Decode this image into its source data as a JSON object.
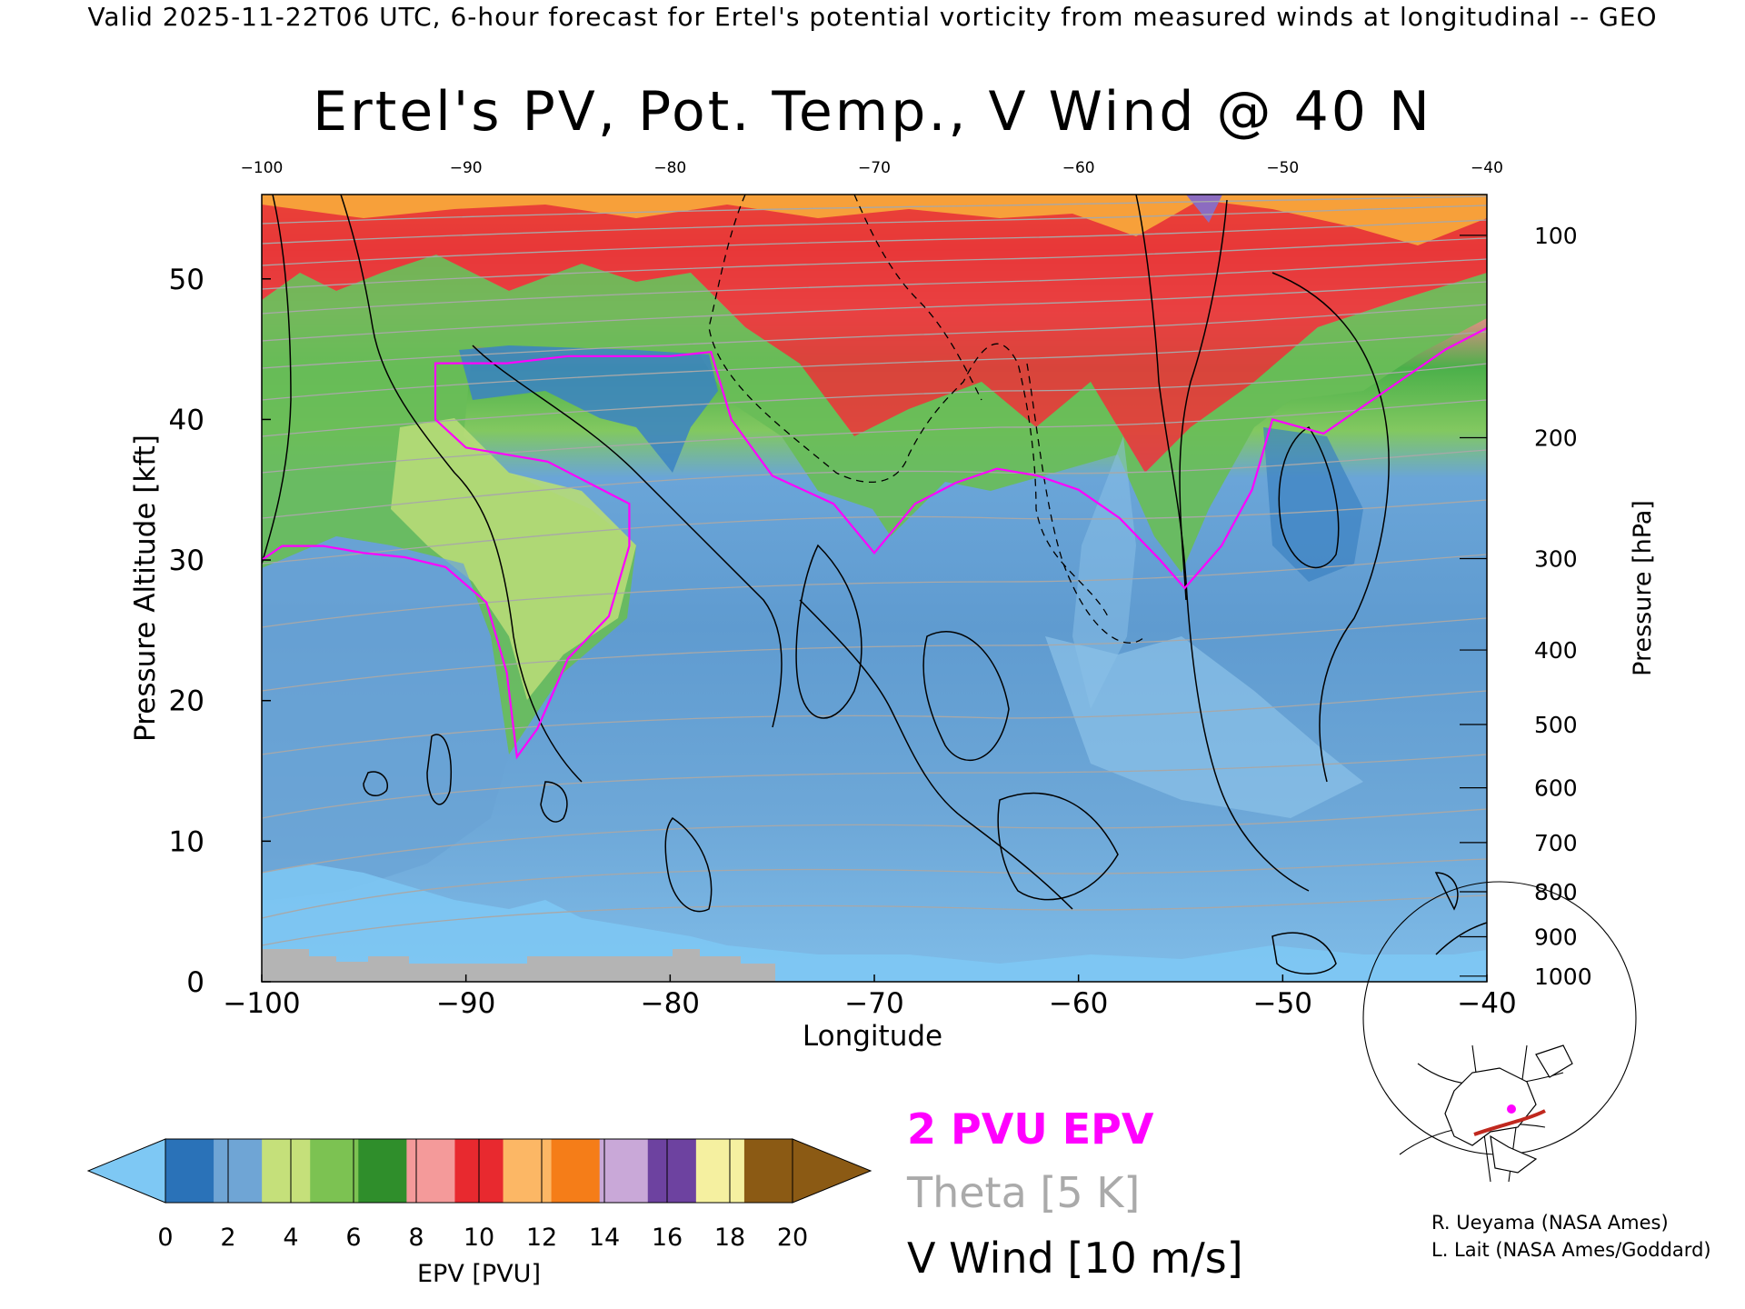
{
  "header": "Valid 2025-11-22T06 UTC, 6-hour forecast for Ertel's potential vorticity from measured winds at longitudinal -- GEO",
  "chart_data": {
    "type": "heatmap",
    "title": "Ertel's PV, Pot. Temp., V Wind @ 40 N",
    "xlabel": "Longitude",
    "ylabel": "Pressure Altitude [kft]",
    "y2label": "Pressure [hPa]",
    "xlim": [
      -100,
      -40
    ],
    "ylim": [
      0,
      56
    ],
    "x_ticks": [
      -100,
      -90,
      -80,
      -70,
      -60,
      -50,
      -40
    ],
    "x_tick_labels": [
      "−100",
      "−90",
      "−80",
      "−70",
      "−60",
      "−50",
      "−40"
    ],
    "top_tick_labels": [
      "−100",
      "−90",
      "−80",
      "−70",
      "−60",
      "−50",
      "−40"
    ],
    "y_ticks": [
      0,
      10,
      20,
      30,
      40,
      50
    ],
    "y_tick_labels": [
      "0",
      "10",
      "20",
      "30",
      "40",
      "50"
    ],
    "pressure_ticks": [
      {
        "hpa": 100,
        "kft": 53.1
      },
      {
        "hpa": 200,
        "kft": 38.7
      },
      {
        "hpa": 300,
        "kft": 30.1
      },
      {
        "hpa": 400,
        "kft": 23.6
      },
      {
        "hpa": 500,
        "kft": 18.3
      },
      {
        "hpa": 600,
        "kft": 13.8
      },
      {
        "hpa": 700,
        "kft": 9.9
      },
      {
        "hpa": 800,
        "kft": 6.4
      },
      {
        "hpa": 900,
        "kft": 3.2
      },
      {
        "hpa": 1000,
        "kft": 0.4
      }
    ],
    "pv_2pvu_boundary": [
      [
        -100,
        30
      ],
      [
        -99,
        31
      ],
      [
        -97,
        31
      ],
      [
        -95,
        30.5
      ],
      [
        -93,
        30.2
      ],
      [
        -91,
        29.5
      ],
      [
        -89,
        27
      ],
      [
        -88,
        22
      ],
      [
        -87.5,
        16
      ],
      [
        -86.5,
        18
      ],
      [
        -85,
        23
      ],
      [
        -83,
        26
      ],
      [
        -82,
        31
      ],
      [
        -82,
        34
      ],
      [
        -84,
        35.5
      ],
      [
        -86,
        37
      ],
      [
        -90,
        38
      ],
      [
        -91.5,
        40
      ],
      [
        -91.5,
        44
      ],
      [
        -88,
        44
      ],
      [
        -85,
        44.5
      ],
      [
        -80,
        44.5
      ],
      [
        -78,
        44.8
      ],
      [
        -77,
        40
      ],
      [
        -75,
        36
      ],
      [
        -72,
        34
      ],
      [
        -70,
        30.5
      ],
      [
        -68,
        34
      ],
      [
        -66,
        35.5
      ],
      [
        -64,
        36.5
      ],
      [
        -62,
        36
      ],
      [
        -60,
        35
      ],
      [
        -58,
        33
      ],
      [
        -56,
        30
      ],
      [
        -54.8,
        28
      ],
      [
        -53,
        31
      ],
      [
        -51.5,
        35
      ],
      [
        -50.5,
        40
      ],
      [
        -48,
        39
      ],
      [
        -45,
        42
      ],
      [
        -42,
        45
      ],
      [
        -40,
        46.5
      ]
    ],
    "epv_colorbar": {
      "label": "EPV [PVU]",
      "ticks": [
        "0",
        "2",
        "4",
        "6",
        "8",
        "10",
        "12",
        "14",
        "16",
        "18",
        "20"
      ],
      "colors": [
        "#2a72b8",
        "#6fa5d5",
        "#c5e07a",
        "#7cc252",
        "#2f8e2b",
        "#f49a9a",
        "#e8292f",
        "#fcb765",
        "#f57d18",
        "#c9a8d8",
        "#6d42a0",
        "#f5f0a0",
        "#8b5a14"
      ],
      "under_color": "#7ec8f4",
      "over_color": "#8b5a14"
    },
    "legend": [
      {
        "text": "2 PVU EPV",
        "color": "#ff00ff"
      },
      {
        "text": "Theta [5 K]",
        "color": "#aaaaaa"
      },
      {
        "text": "V Wind [10 m/s]",
        "color": "#000000"
      }
    ],
    "grid": false
  },
  "credits": [
    "R. Ueyama (NASA Ames)",
    "L. Lait (NASA Ames/Goddard)"
  ],
  "colors": {
    "pv_contour": "#ff00ff",
    "theta_contour": "#aaaaaa",
    "wind_contour": "#000000",
    "terrain": "#b4b4b4",
    "inset_track": "#c0281e"
  }
}
